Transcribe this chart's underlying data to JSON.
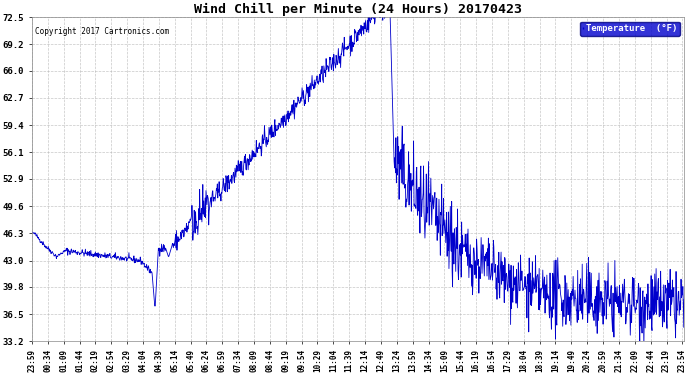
{
  "title": "Wind Chill per Minute (24 Hours) 20170423",
  "copyright": "Copyright 2017 Cartronics.com",
  "legend_label": "Temperature  (°F)",
  "yticks": [
    33.2,
    36.5,
    39.8,
    43.0,
    46.3,
    49.6,
    52.9,
    56.1,
    59.4,
    62.7,
    66.0,
    69.2,
    72.5
  ],
  "ylim": [
    33.2,
    72.5
  ],
  "line_color": "#0000CC",
  "background_color": "#ffffff",
  "grid_color": "#b0b0b0",
  "title_color": "#000000",
  "legend_bg": "#0000CC",
  "legend_fg": "#ffffff",
  "xtick_labels": [
    "23:59",
    "00:34",
    "01:09",
    "01:44",
    "02:19",
    "02:54",
    "03:29",
    "04:04",
    "04:39",
    "05:14",
    "05:49",
    "06:24",
    "06:59",
    "07:34",
    "08:09",
    "08:44",
    "09:19",
    "09:54",
    "10:29",
    "11:04",
    "11:39",
    "12:14",
    "12:49",
    "13:24",
    "13:59",
    "14:34",
    "15:09",
    "15:44",
    "16:19",
    "16:54",
    "17:29",
    "18:04",
    "18:39",
    "19:14",
    "19:49",
    "20:24",
    "20:59",
    "21:34",
    "22:09",
    "22:44",
    "23:19",
    "23:54"
  ]
}
